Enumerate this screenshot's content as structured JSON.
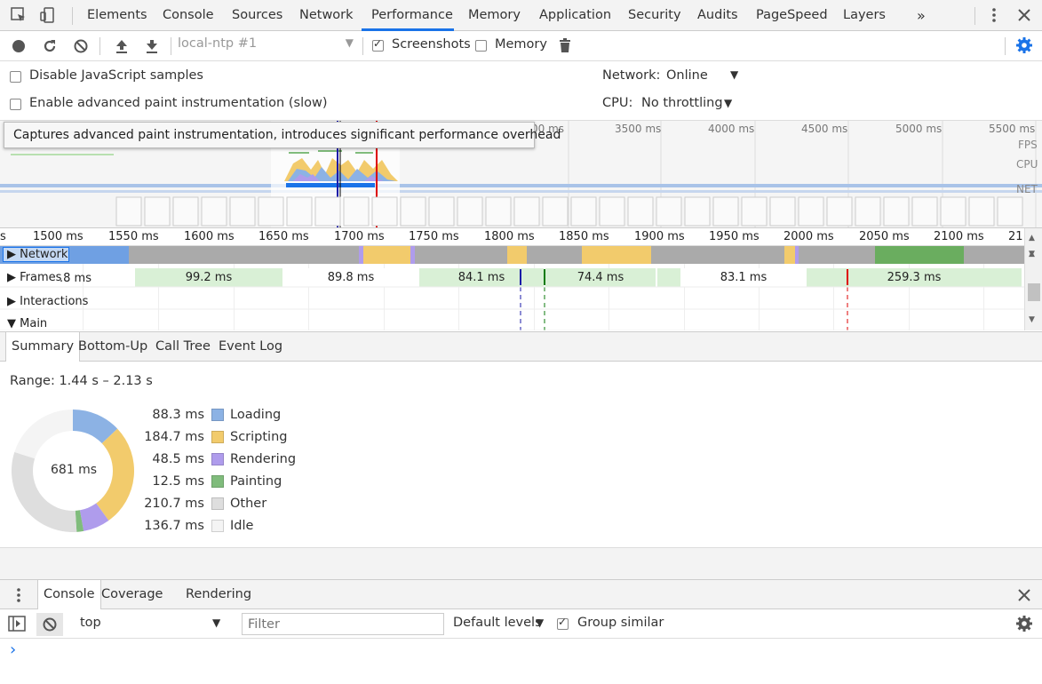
{
  "tabbar": {
    "tabs": [
      {
        "label": "Elements"
      },
      {
        "label": "Console"
      },
      {
        "label": "Sources"
      },
      {
        "label": "Network"
      },
      {
        "label": "Performance"
      },
      {
        "label": "Memory"
      },
      {
        "label": "Application"
      },
      {
        "label": "Security"
      },
      {
        "label": "Audits"
      },
      {
        "label": "PageSpeed"
      },
      {
        "label": "Layers"
      }
    ],
    "active_tab": "Performance",
    "more_icon": "chevron-double-right-icon",
    "overflow_icon": "vertical-dots-icon",
    "close_icon": "close-icon"
  },
  "toolbar": {
    "profile_select": "local-ntp #1",
    "screenshots_label": "Screenshots",
    "screenshots_checked": true,
    "memory_label": "Memory",
    "memory_checked": false
  },
  "settings": {
    "disable_js_samples": "Disable JavaScript samples",
    "enable_paint": "Enable advanced paint instrumentation (slow)",
    "network_label": "Network:",
    "network_value": "Online",
    "cpu_label": "CPU:",
    "cpu_value": "No throttling"
  },
  "tooltip": "Captures advanced paint instrumentation, introduces significant performance overhead",
  "overview": {
    "ticks": [
      "00 ms",
      "3500 ms",
      "4000 ms",
      "4500 ms",
      "5000 ms",
      "5500 ms"
    ],
    "labels": {
      "fps": "FPS",
      "cpu": "CPU",
      "net": "NET"
    }
  },
  "ruler": {
    "ticks": [
      "s",
      "1500 ms",
      "1550 ms",
      "1600 ms",
      "1650 ms",
      "1700 ms",
      "1750 ms",
      "1800 ms",
      "1850 ms",
      "1900 ms",
      "1950 ms",
      "2000 ms",
      "2050 ms",
      "2100 ms",
      "21"
    ]
  },
  "tracks": {
    "network": "Network",
    "frames": "Frames",
    "frames_partial": ".8 ms",
    "interactions": "Interactions",
    "main": "Main",
    "frame_values": [
      "99.2 ms",
      "89.8 ms",
      "84.1 ms",
      "74.4 ms",
      "83.1 ms",
      "259.3 ms"
    ]
  },
  "summary_tabs": [
    "Summary",
    "Bottom-Up",
    "Call Tree",
    "Event Log"
  ],
  "summary": {
    "range": "Range: 1.44 s – 2.13 s",
    "total": "681 ms",
    "items": [
      {
        "value": "88.3 ms",
        "label": "Loading",
        "color": "#8cb2e4"
      },
      {
        "value": "184.7 ms",
        "label": "Scripting",
        "color": "#f2cb6c"
      },
      {
        "value": "48.5 ms",
        "label": "Rendering",
        "color": "#af9cec"
      },
      {
        "value": "12.5 ms",
        "label": "Painting",
        "color": "#80bc7c"
      },
      {
        "value": "210.7 ms",
        "label": "Other",
        "color": "#dedede"
      },
      {
        "value": "136.7 ms",
        "label": "Idle",
        "color": "#f4f4f4"
      }
    ]
  },
  "drawer": {
    "tabs": [
      "Console",
      "Coverage",
      "Rendering"
    ],
    "context": "top",
    "filter_placeholder": "Filter",
    "levels": "Default levels",
    "group_similar": "Group similar",
    "group_similar_checked": true,
    "prompt": "›"
  }
}
